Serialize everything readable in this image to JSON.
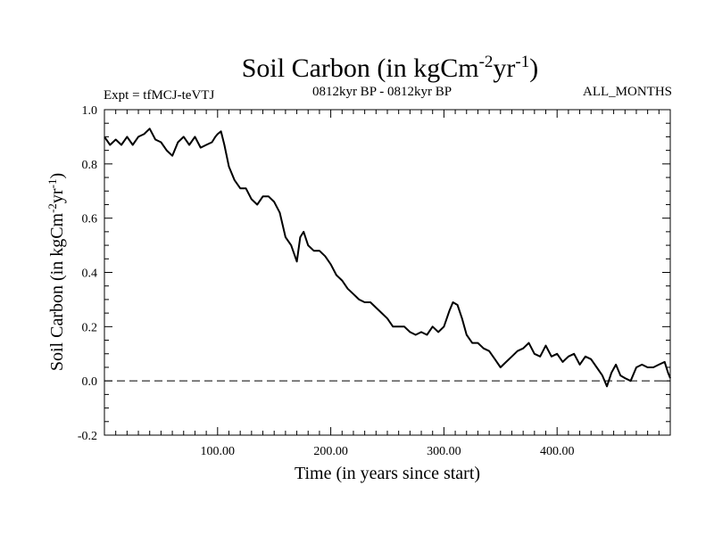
{
  "chart_data": {
    "type": "line",
    "title": "Soil Carbon (in kgCm",
    "title_sup1": "-2",
    "title_mid": "yr",
    "title_sup2": "-1",
    "title_end": ")",
    "subtitle_left": "Expt = tfMCJ-teVTJ",
    "subtitle_center": "0812kyr BP - 0812kyr BP",
    "subtitle_right": "ALL_MONTHS",
    "xlabel": "Time (in years since start)",
    "ylabel": "Soil Carbon (in kgCm",
    "ylabel_sup1": "-2",
    "ylabel_mid": "yr",
    "ylabel_sup2": "-1",
    "ylabel_end": ")",
    "xlim": [
      0,
      500
    ],
    "ylim": [
      -0.2,
      1.0
    ],
    "x_ticks": [
      100,
      200,
      300,
      400
    ],
    "x_tick_labels": [
      "100.00",
      "200.00",
      "300.00",
      "400.00"
    ],
    "y_ticks": [
      -0.2,
      0.0,
      0.2,
      0.4,
      0.6,
      0.8,
      1.0
    ],
    "y_tick_labels": [
      "-0.2",
      "0.0",
      "0.2",
      "0.4",
      "0.6",
      "0.8",
      "1.0"
    ],
    "reference_line": 0.0,
    "series": [
      {
        "name": "Soil Carbon",
        "color": "#000000",
        "x": [
          0,
          5,
          10,
          15,
          20,
          25,
          30,
          35,
          40,
          45,
          50,
          55,
          60,
          65,
          70,
          75,
          80,
          85,
          90,
          95,
          98,
          100,
          103,
          106,
          110,
          115,
          120,
          125,
          130,
          135,
          140,
          145,
          150,
          155,
          160,
          165,
          170,
          173,
          176,
          180,
          185,
          190,
          195,
          200,
          205,
          210,
          215,
          220,
          225,
          230,
          235,
          240,
          245,
          250,
          255,
          260,
          265,
          270,
          275,
          280,
          285,
          290,
          295,
          300,
          305,
          308,
          312,
          316,
          320,
          325,
          330,
          335,
          340,
          345,
          350,
          355,
          360,
          365,
          370,
          375,
          380,
          385,
          390,
          395,
          400,
          405,
          410,
          415,
          420,
          425,
          430,
          435,
          440,
          444,
          448,
          452,
          456,
          460,
          465,
          470,
          475,
          480,
          485,
          490,
          495,
          498,
          500
        ],
        "y": [
          0.9,
          0.87,
          0.89,
          0.87,
          0.9,
          0.87,
          0.9,
          0.91,
          0.93,
          0.89,
          0.88,
          0.85,
          0.83,
          0.88,
          0.9,
          0.87,
          0.9,
          0.86,
          0.87,
          0.88,
          0.9,
          0.91,
          0.92,
          0.87,
          0.79,
          0.74,
          0.71,
          0.71,
          0.67,
          0.65,
          0.68,
          0.68,
          0.66,
          0.62,
          0.53,
          0.5,
          0.44,
          0.53,
          0.55,
          0.5,
          0.48,
          0.48,
          0.46,
          0.43,
          0.39,
          0.37,
          0.34,
          0.32,
          0.3,
          0.29,
          0.29,
          0.27,
          0.25,
          0.23,
          0.2,
          0.2,
          0.2,
          0.18,
          0.17,
          0.18,
          0.17,
          0.2,
          0.18,
          0.2,
          0.26,
          0.29,
          0.28,
          0.23,
          0.17,
          0.14,
          0.14,
          0.12,
          0.11,
          0.08,
          0.05,
          0.07,
          0.09,
          0.11,
          0.12,
          0.14,
          0.1,
          0.09,
          0.13,
          0.09,
          0.1,
          0.07,
          0.09,
          0.1,
          0.06,
          0.09,
          0.08,
          0.05,
          0.02,
          -0.02,
          0.03,
          0.06,
          0.02,
          0.01,
          0.0,
          0.05,
          0.06,
          0.05,
          0.05,
          0.06,
          0.07,
          0.03,
          0.01
        ]
      }
    ]
  }
}
